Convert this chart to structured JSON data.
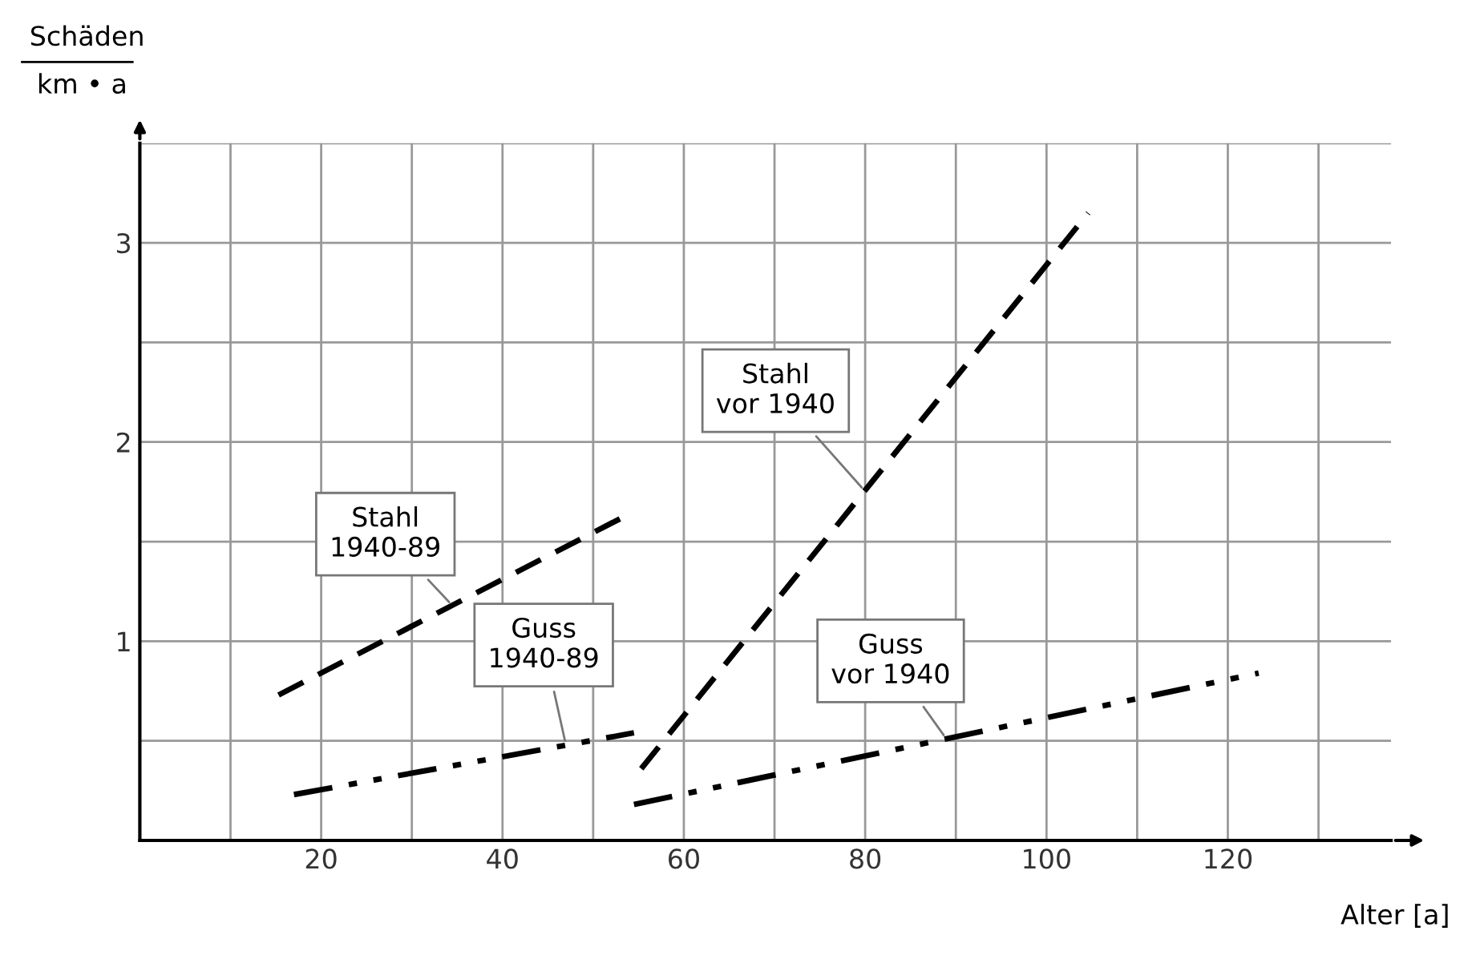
{
  "chart_data": {
    "type": "line",
    "ylabel": "Schäden\nkm • a",
    "xlabel": "Alter [a]",
    "xlim": [
      0,
      138
    ],
    "ylim": [
      0,
      3.5
    ],
    "xticks": [
      {
        "value": 10,
        "label": null
      },
      20,
      {
        "value": 30,
        "label": null
      },
      40,
      {
        "value": 50,
        "label": null
      },
      60,
      {
        "value": 70,
        "label": null
      },
      80,
      {
        "value": 90,
        "label": null
      },
      100,
      {
        "value": 110,
        "label": null
      },
      120,
      {
        "value": 130,
        "label": null
      }
    ],
    "yticks": [
      {
        "value": 0.5,
        "label": null
      },
      1,
      {
        "value": 1.5,
        "label": null
      },
      2,
      {
        "value": 2.5,
        "label": null
      },
      3,
      {
        "value": 3.5,
        "label": null
      }
    ],
    "grid": true,
    "legend": false,
    "series": [
      {
        "name": "Stahl\n1940-89",
        "color": "#000000",
        "line_style": "dashed",
        "x": [
          15.3,
          53.6
        ],
        "values": [
          0.73,
          1.63
        ]
      },
      {
        "name": "Guss\n1940-89",
        "color": "#000000",
        "line_style": "dashdot",
        "x": [
          17,
          54.5
        ],
        "values": [
          0.23,
          0.54
        ]
      },
      {
        "name": "Stahl\nvor 1940",
        "color": "#000000",
        "line_style": "dashed",
        "x": [
          55.3,
          104.6
        ],
        "values": [
          0.36,
          3.15
        ]
      },
      {
        "name": "Guss\nvor 1940",
        "color": "#000000",
        "line_style": "dashdot",
        "x": [
          54.5,
          123.4
        ],
        "values": [
          0.18,
          0.84
        ]
      }
    ]
  }
}
